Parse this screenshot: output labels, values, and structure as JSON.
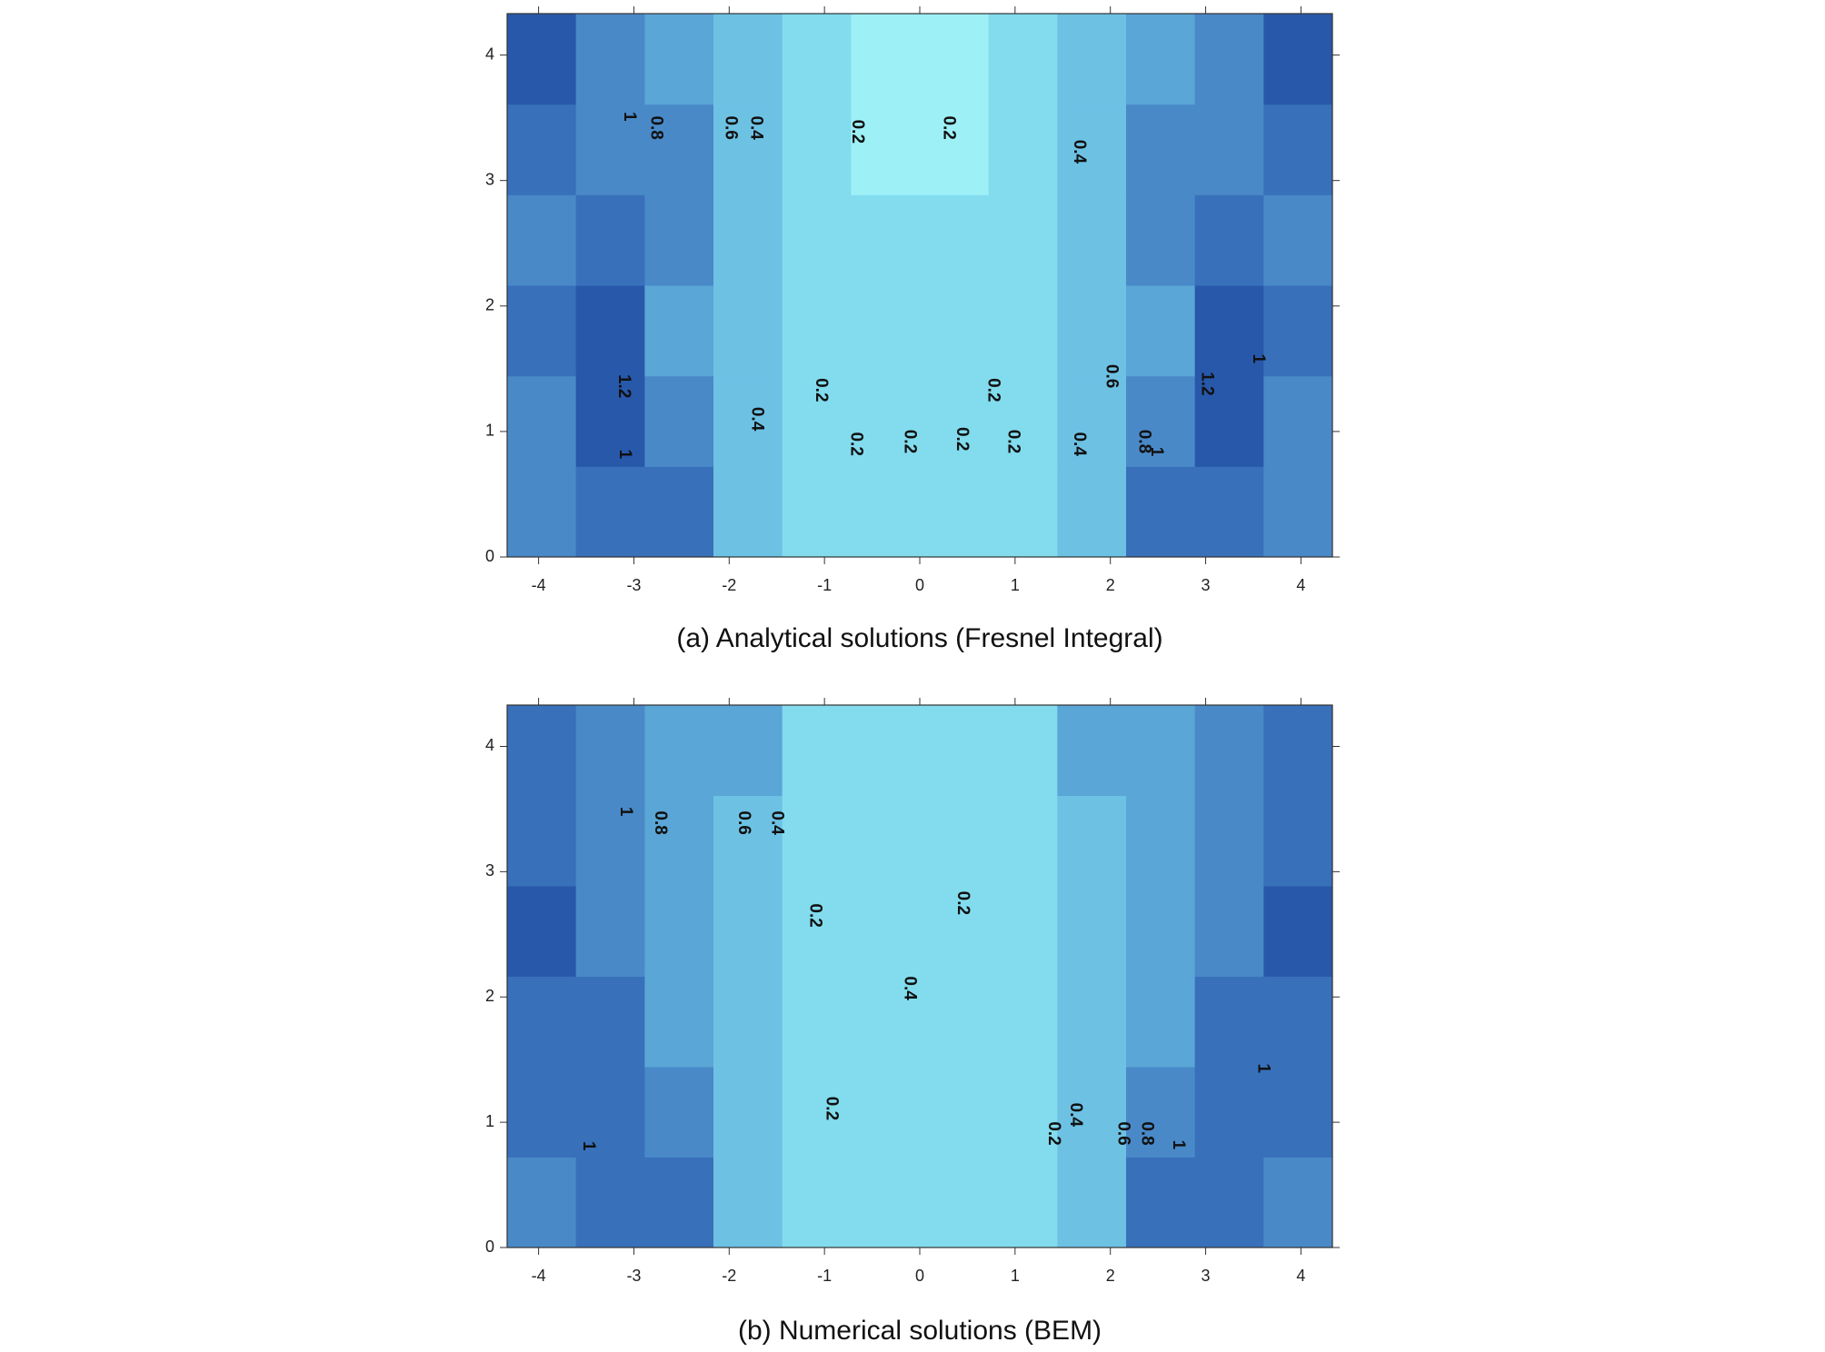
{
  "chart_data": [
    {
      "type": "contour",
      "title": "(a) Analytical solutions (Fresnel Integral)",
      "xlim": [
        -4.33,
        4.33
      ],
      "ylim": [
        0,
        4.33
      ],
      "xticks": [
        -4,
        -3,
        -2,
        -1,
        0,
        1,
        2,
        3,
        4
      ],
      "yticks": [
        0,
        1,
        2,
        3,
        4
      ],
      "levels": [
        0,
        0.2,
        0.4,
        0.6,
        0.8,
        1,
        1.2,
        1.4
      ],
      "colors": [
        "#9ef0f7",
        "#82dcee",
        "#6dc2e4",
        "#5aa6d6",
        "#4989c8",
        "#3870ba",
        "#2858aa"
      ],
      "z": [
        [
          0.9,
          1.0,
          1.1,
          0.4,
          0.3,
          0.25,
          0.25,
          0.3,
          0.4,
          1.1,
          1.0,
          0.9
        ],
        [
          0.9,
          1.25,
          0.9,
          0.45,
          0.3,
          0.2,
          0.2,
          0.3,
          0.5,
          0.9,
          1.25,
          0.9
        ],
        [
          1.0,
          1.2,
          0.7,
          0.5,
          0.3,
          0.25,
          0.25,
          0.3,
          0.5,
          0.7,
          1.2,
          1.0
        ],
        [
          0.9,
          1.1,
          0.8,
          0.5,
          0.35,
          0.2,
          0.2,
          0.35,
          0.5,
          0.8,
          1.1,
          0.9
        ],
        [
          1.1,
          0.95,
          0.8,
          0.5,
          0.3,
          0.15,
          0.15,
          0.3,
          0.5,
          0.8,
          0.95,
          1.1
        ],
        [
          1.2,
          0.9,
          0.7,
          0.5,
          0.3,
          0.15,
          0.15,
          0.3,
          0.5,
          0.7,
          0.9,
          1.2
        ]
      ],
      "contour_labels": [
        {
          "level": 1,
          "x": -3.05,
          "y": 3.51
        },
        {
          "level": 0.8,
          "x": -2.77,
          "y": 3.42
        },
        {
          "level": 0.6,
          "x": -1.99,
          "y": 3.42
        },
        {
          "level": 0.4,
          "x": -1.72,
          "y": 3.42
        },
        {
          "level": 0.2,
          "x": -0.66,
          "y": 3.39
        },
        {
          "level": 0.2,
          "x": 0.3,
          "y": 3.42
        },
        {
          "level": 0.4,
          "x": 1.67,
          "y": 3.23
        },
        {
          "level": 1.2,
          "x": -3.11,
          "y": 1.36
        },
        {
          "level": 0.2,
          "x": -1.04,
          "y": 1.33
        },
        {
          "level": 0.4,
          "x": -1.71,
          "y": 1.1
        },
        {
          "level": 1,
          "x": -3.1,
          "y": 0.82
        },
        {
          "level": 0.2,
          "x": -0.67,
          "y": 0.9
        },
        {
          "level": 0.2,
          "x": -0.11,
          "y": 0.92
        },
        {
          "level": 0.2,
          "x": 0.44,
          "y": 0.94
        },
        {
          "level": 0.2,
          "x": 0.77,
          "y": 1.33
        },
        {
          "level": 0.2,
          "x": 0.98,
          "y": 0.92
        },
        {
          "level": 0.4,
          "x": 1.67,
          "y": 0.9
        },
        {
          "level": 0.6,
          "x": 2.01,
          "y": 1.44
        },
        {
          "level": 0.8,
          "x": 2.35,
          "y": 0.92
        },
        {
          "level": 1,
          "x": 2.48,
          "y": 0.84
        },
        {
          "level": 1.2,
          "x": 3.01,
          "y": 1.38
        },
        {
          "level": 1,
          "x": 3.55,
          "y": 1.58
        }
      ]
    },
    {
      "type": "contour",
      "title": "(b) Numerical solutions (BEM)",
      "xlim": [
        -4.33,
        4.33
      ],
      "ylim": [
        0,
        4.33
      ],
      "xticks": [
        -4,
        -3,
        -2,
        -1,
        0,
        1,
        2,
        3,
        4
      ],
      "yticks": [
        0,
        1,
        2,
        3,
        4
      ],
      "levels": [
        0,
        0.2,
        0.4,
        0.6,
        0.8,
        1,
        1.2,
        1.4
      ],
      "colors": [
        "#9ef0f7",
        "#82dcee",
        "#6dc2e4",
        "#5aa6d6",
        "#4989c8",
        "#3870ba",
        "#2858aa"
      ],
      "z": [
        [
          0.9,
          1.1,
          1.0,
          0.4,
          0.25,
          0.2,
          0.2,
          0.25,
          0.4,
          1.0,
          1.1,
          0.9
        ],
        [
          1.0,
          1.1,
          0.8,
          0.4,
          0.25,
          0.2,
          0.2,
          0.25,
          0.4,
          0.8,
          1.1,
          1.0
        ],
        [
          1.1,
          1.0,
          0.7,
          0.4,
          0.3,
          0.25,
          0.25,
          0.3,
          0.4,
          0.7,
          1.0,
          1.1
        ],
        [
          1.2,
          0.9,
          0.7,
          0.45,
          0.3,
          0.2,
          0.2,
          0.3,
          0.45,
          0.7,
          0.9,
          1.2
        ],
        [
          1.1,
          0.95,
          0.75,
          0.5,
          0.3,
          0.25,
          0.25,
          0.3,
          0.5,
          0.75,
          0.95,
          1.1
        ],
        [
          1.05,
          0.9,
          0.75,
          0.6,
          0.35,
          0.3,
          0.3,
          0.35,
          0.6,
          0.75,
          0.9,
          1.05
        ]
      ],
      "contour_labels": [
        {
          "level": 1,
          "x": -3.09,
          "y": 3.48
        },
        {
          "level": 0.8,
          "x": -2.73,
          "y": 3.39
        },
        {
          "level": 0.6,
          "x": -1.85,
          "y": 3.39
        },
        {
          "level": 0.4,
          "x": -1.5,
          "y": 3.39
        },
        {
          "level": 0.2,
          "x": -1.1,
          "y": 2.65
        },
        {
          "level": 0.2,
          "x": 0.45,
          "y": 2.75
        },
        {
          "level": 0.4,
          "x": -0.11,
          "y": 2.07
        },
        {
          "level": 0.2,
          "x": -0.93,
          "y": 1.11
        },
        {
          "level": 0.2,
          "x": 1.4,
          "y": 0.91
        },
        {
          "level": 0.4,
          "x": 1.63,
          "y": 1.06
        },
        {
          "level": 0.6,
          "x": 2.13,
          "y": 0.91
        },
        {
          "level": 0.8,
          "x": 2.38,
          "y": 0.91
        },
        {
          "level": 1,
          "x": 2.71,
          "y": 0.82
        },
        {
          "level": 1,
          "x": -3.48,
          "y": 0.81
        },
        {
          "level": 1,
          "x": 3.6,
          "y": 1.43
        }
      ]
    }
  ]
}
